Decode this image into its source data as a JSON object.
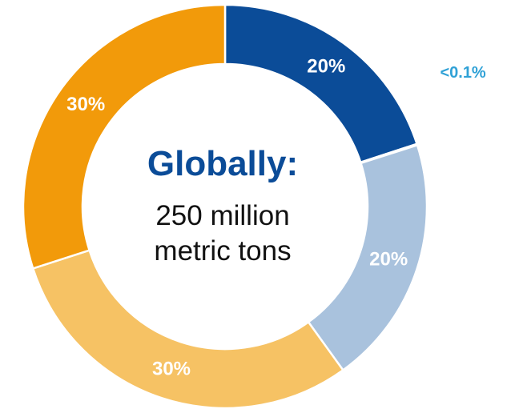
{
  "chart_data": {
    "type": "pie",
    "donut": true,
    "slices": [
      {
        "value": 20,
        "label": "20%",
        "color": "#0b4c98"
      },
      {
        "value": 0.1,
        "label": "<0.1%",
        "color": "#2fa1d6",
        "label_outside": true
      },
      {
        "value": 20,
        "label": "20%",
        "color": "#a9c2dd"
      },
      {
        "value": 30,
        "label": "30%",
        "color": "#f6c264"
      },
      {
        "value": 30,
        "label": "30%",
        "color": "#f29a0a"
      }
    ],
    "center_text": {
      "title": "Globally:",
      "line1": "250 million",
      "line2": "metric tons"
    }
  }
}
